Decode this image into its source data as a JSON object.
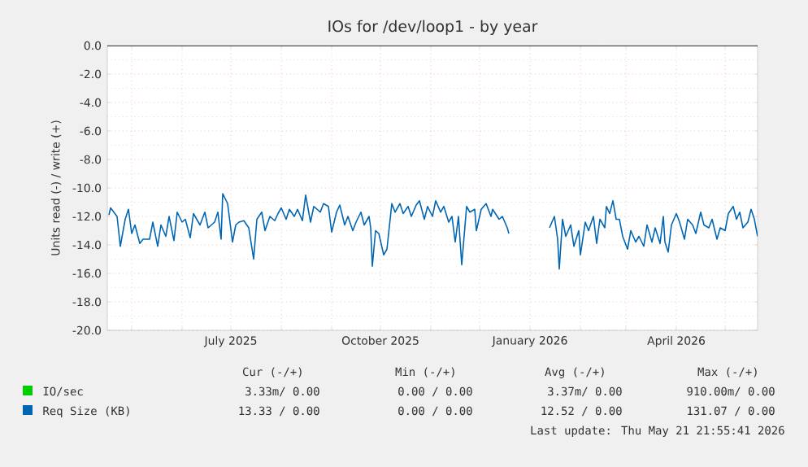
{
  "chart_data": {
    "type": "line",
    "title": "IOs for /dev/loop1 - by year",
    "ylabel": "Units read (-) / write (+)",
    "xlim": [
      "2025-04-16",
      "2026-05-21"
    ],
    "xticks": [
      {
        "value": "2025-05-01",
        "label": null
      },
      {
        "value": "2025-06-01",
        "label": null
      },
      {
        "value": "2025-07-01",
        "label": "July 2025"
      },
      {
        "value": "2025-08-01",
        "label": null
      },
      {
        "value": "2025-09-01",
        "label": null
      },
      {
        "value": "2025-10-01",
        "label": "October 2025"
      },
      {
        "value": "2025-11-01",
        "label": null
      },
      {
        "value": "2025-12-01",
        "label": null
      },
      {
        "value": "2026-01-01",
        "label": "January 2026"
      },
      {
        "value": "2026-02-01",
        "label": null
      },
      {
        "value": "2026-03-01",
        "label": null
      },
      {
        "value": "2026-04-01",
        "label": "April 2026"
      },
      {
        "value": "2026-05-01",
        "label": null
      }
    ],
    "ylim": [
      -20,
      0
    ],
    "yticks": [
      {
        "value": 0,
        "label": "0.0"
      },
      {
        "value": -2,
        "label": "-2.0"
      },
      {
        "value": -4,
        "label": "-4.0"
      },
      {
        "value": -6,
        "label": "-6.0"
      },
      {
        "value": -8,
        "label": "-8.0"
      },
      {
        "value": -10,
        "label": "-10.0"
      },
      {
        "value": -12,
        "label": "-12.0"
      },
      {
        "value": -14,
        "label": "-14.0"
      },
      {
        "value": -16,
        "label": "-16.0"
      },
      {
        "value": -18,
        "label": "-18.0"
      },
      {
        "value": -20,
        "label": "-20.0"
      }
    ],
    "grid": true,
    "legend": "bottom",
    "marker": "none",
    "line_style": "solid",
    "ref_lines": [
      {
        "axis": "y",
        "value": 0,
        "color": "#000000"
      }
    ],
    "series": [
      {
        "name": "IO/sec",
        "color": "#00cc00"
      },
      {
        "name": "Req Size (KB)",
        "color": "#0066b3",
        "x": [
          "2025-04-17",
          "2025-04-18",
          "2025-04-22",
          "2025-04-24",
          "2025-04-27",
          "2025-04-29",
          "2025-05-01",
          "2025-05-03",
          "2025-05-06",
          "2025-05-08",
          "2025-05-12",
          "2025-05-14",
          "2025-05-17",
          "2025-05-19",
          "2025-05-22",
          "2025-05-24",
          "2025-05-27",
          "2025-05-29",
          "2025-06-01",
          "2025-06-03",
          "2025-06-06",
          "2025-06-08",
          "2025-06-12",
          "2025-06-15",
          "2025-06-17",
          "2025-06-21",
          "2025-06-23",
          "2025-06-25",
          "2025-06-26",
          "2025-06-29",
          "2025-07-02",
          "2025-07-04",
          "2025-07-06",
          "2025-07-09",
          "2025-07-12",
          "2025-07-15",
          "2025-07-17",
          "2025-07-20",
          "2025-07-22",
          "2025-07-25",
          "2025-07-28",
          "2025-07-30",
          "2025-08-01",
          "2025-08-04",
          "2025-08-06",
          "2025-08-09",
          "2025-08-11",
          "2025-08-14",
          "2025-08-16",
          "2025-08-19",
          "2025-08-21",
          "2025-08-25",
          "2025-08-27",
          "2025-08-30",
          "2025-09-01",
          "2025-09-04",
          "2025-09-06",
          "2025-09-09",
          "2025-09-11",
          "2025-09-14",
          "2025-09-16",
          "2025-09-19",
          "2025-09-21",
          "2025-09-24",
          "2025-09-25",
          "2025-09-26",
          "2025-09-28",
          "2025-09-30",
          "2025-10-03",
          "2025-10-05",
          "2025-10-08",
          "2025-10-10",
          "2025-10-13",
          "2025-10-15",
          "2025-10-18",
          "2025-10-20",
          "2025-10-23",
          "2025-10-25",
          "2025-10-28",
          "2025-10-30",
          "2025-11-02",
          "2025-11-04",
          "2025-11-07",
          "2025-11-09",
          "2025-11-12",
          "2025-11-14",
          "2025-11-16",
          "2025-11-18",
          "2025-11-20",
          "2025-11-23",
          "2025-11-25",
          "2025-11-28",
          "2025-11-29",
          "2025-12-02",
          "2025-12-05",
          "2025-12-08",
          "2025-12-09",
          "2025-12-13",
          "2025-12-15",
          "2025-12-18",
          "2025-12-19",
          "2025-12-31",
          "2026-01-13",
          "2026-01-16",
          "2026-01-18",
          "2026-01-19",
          "2026-01-21",
          "2026-01-23",
          "2026-01-26",
          "2026-01-28",
          "2026-01-31",
          "2026-02-01",
          "2026-02-04",
          "2026-02-06",
          "2026-02-09",
          "2026-02-11",
          "2026-02-13",
          "2026-02-16",
          "2026-02-17",
          "2026-02-19",
          "2026-02-21",
          "2026-02-23",
          "2026-02-25",
          "2026-02-27",
          "2026-03-02",
          "2026-03-04",
          "2026-03-07",
          "2026-03-09",
          "2026-03-12",
          "2026-03-14",
          "2026-03-17",
          "2026-03-19",
          "2026-03-22",
          "2026-03-24",
          "2026-03-25",
          "2026-03-27",
          "2026-03-29",
          "2026-04-01",
          "2026-04-03",
          "2026-04-06",
          "2026-04-08",
          "2026-04-11",
          "2026-04-13",
          "2026-04-16",
          "2026-04-18",
          "2026-04-21",
          "2026-04-23",
          "2026-04-26",
          "2026-04-28",
          "2026-05-01",
          "2026-05-03",
          "2026-05-06",
          "2026-05-08",
          "2026-05-10",
          "2026-05-12",
          "2026-05-15",
          "2026-05-17",
          "2026-05-19",
          "2026-05-21"
        ],
        "values": [
          -11.9,
          -11.4,
          -12.0,
          -14.1,
          -12.2,
          -11.5,
          -13.2,
          -12.6,
          -13.9,
          -13.6,
          -13.6,
          -12.4,
          -14.1,
          -12.6,
          -13.4,
          -12.0,
          -13.7,
          -11.7,
          -12.4,
          -12.2,
          -13.5,
          -11.8,
          -12.6,
          -11.7,
          -12.8,
          -12.4,
          -11.7,
          -13.6,
          -10.4,
          -11.1,
          -13.8,
          -12.6,
          -12.4,
          -12.3,
          -12.8,
          -15.0,
          -12.2,
          -11.7,
          -13.0,
          -12.0,
          -12.3,
          -11.8,
          -11.4,
          -12.2,
          -11.5,
          -12.0,
          -11.5,
          -12.3,
          -10.5,
          -12.4,
          -11.3,
          -11.7,
          -11.1,
          -11.3,
          -13.1,
          -11.7,
          -11.2,
          -12.6,
          -12.0,
          -13.0,
          -12.4,
          -11.7,
          -12.6,
          -12.0,
          -12.8,
          -15.5,
          -13.0,
          -13.2,
          -14.7,
          -14.3,
          -11.1,
          -11.7,
          -11.1,
          -11.8,
          -11.3,
          -12.0,
          -11.2,
          -10.9,
          -12.2,
          -11.3,
          -12.0,
          -10.9,
          -11.7,
          -11.3,
          -12.4,
          -12.0,
          -13.8,
          -12.0,
          -15.4,
          -11.3,
          -11.7,
          -11.5,
          -13.0,
          -11.5,
          -11.1,
          -12.0,
          -11.5,
          -12.2,
          -12.0,
          -12.8,
          -13.2,
          null,
          -12.8,
          -12.0,
          -13.6,
          -15.7,
          -12.2,
          -13.4,
          -12.6,
          -14.1,
          -13.0,
          -14.7,
          -12.4,
          -13.0,
          -12.0,
          -13.9,
          -12.2,
          -12.8,
          -11.3,
          -11.8,
          -10.9,
          -12.2,
          -12.2,
          -13.4,
          -14.3,
          -13.0,
          -13.8,
          -13.4,
          -14.1,
          -12.6,
          -13.8,
          -12.8,
          -13.9,
          -12.0,
          -13.8,
          -14.5,
          -12.6,
          -11.8,
          -12.4,
          -13.6,
          -12.2,
          -12.6,
          -13.2,
          -11.7,
          -12.6,
          -12.8,
          -12.2,
          -13.6,
          -12.8,
          -13.0,
          -11.8,
          -11.3,
          -12.2,
          -11.7,
          -12.8,
          -12.4,
          -11.5,
          -12.2,
          -13.4
        ]
      }
    ],
    "annotations": [
      "Cur (-/+)",
      "Min (-/+)",
      "Avg (-/+)",
      "Max (-/+)",
      "3.33m/ 0.00",
      "0.00 / 0.00",
      "3.37m/ 0.00",
      "910.00m/ 0.00",
      "13.33 / 0.00",
      "0.00 / 0.00",
      "12.52 / 0.00",
      "131.07 / 0.00",
      "Last update: Thu May 21 21:55:41 2026"
    ]
  }
}
